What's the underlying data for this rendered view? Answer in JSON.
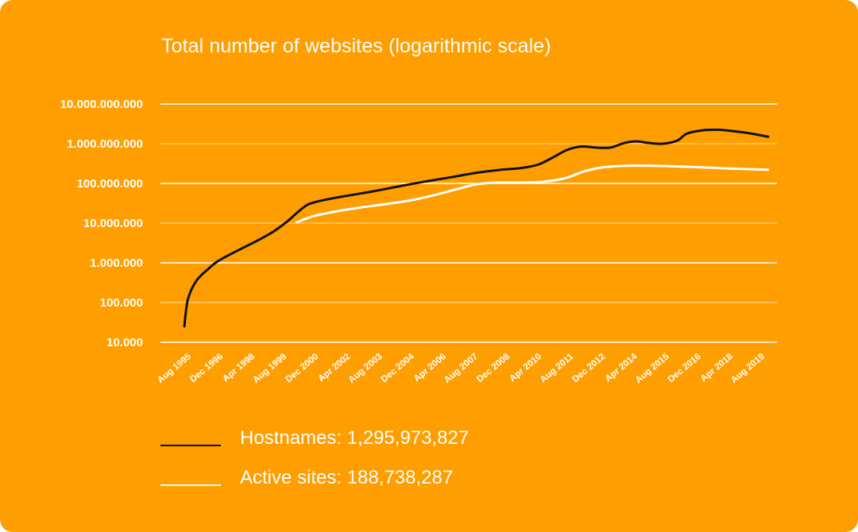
{
  "chart_data": {
    "type": "line",
    "title": "Total number of websites (logarithmic scale)",
    "xlabel": "",
    "ylabel": "",
    "yscale": "log",
    "ylim": [
      10000,
      10000000000
    ],
    "yticks": [
      {
        "value": 10000000000,
        "label": "10.000.000.000"
      },
      {
        "value": 1000000000,
        "label": "1.000.000.000"
      },
      {
        "value": 100000000,
        "label": "100.000.000"
      },
      {
        "value": 10000000,
        "label": "10.000.000"
      },
      {
        "value": 1000000,
        "label": "1.000.000"
      },
      {
        "value": 100000,
        "label": "100.000"
      },
      {
        "value": 10000,
        "label": "10.000"
      }
    ],
    "categories": [
      "Aug 1995",
      "Dec 1996",
      "Apr 1998",
      "Aug 1999",
      "Dec 2000",
      "Apr 2002",
      "Aug 2003",
      "Dec 2004",
      "Apr 2006",
      "Aug 2007",
      "Dec 2008",
      "Apr 2010",
      "Aug 2011",
      "Dec 2012",
      "Apr 2014",
      "Aug 2015",
      "Dec 2016",
      "Apr 2018",
      "Aug 2019"
    ],
    "x_range": [
      1995.6,
      2020.1
    ],
    "series": [
      {
        "name": "Hostnames",
        "color": "#111111",
        "points": [
          [
            1995.6,
            25000
          ],
          [
            1995.75,
            120000
          ],
          [
            1996.1,
            350000
          ],
          [
            1996.6,
            700000
          ],
          [
            1997.0,
            1100000
          ],
          [
            1997.8,
            2000000
          ],
          [
            1998.6,
            3500000
          ],
          [
            1999.3,
            6000000
          ],
          [
            1999.9,
            11000000
          ],
          [
            2000.3,
            18000000
          ],
          [
            2000.8,
            30000000
          ],
          [
            2001.6,
            40000000
          ],
          [
            2002.5,
            50000000
          ],
          [
            2003.6,
            65000000
          ],
          [
            2004.6,
            85000000
          ],
          [
            2005.6,
            110000000
          ],
          [
            2006.8,
            145000000
          ],
          [
            2007.8,
            185000000
          ],
          [
            2008.8,
            220000000
          ],
          [
            2009.7,
            245000000
          ],
          [
            2010.4,
            300000000
          ],
          [
            2011.0,
            450000000
          ],
          [
            2011.6,
            700000000
          ],
          [
            2012.2,
            850000000
          ],
          [
            2012.8,
            800000000
          ],
          [
            2013.4,
            800000000
          ],
          [
            2014.0,
            1050000000
          ],
          [
            2014.5,
            1150000000
          ],
          [
            2015.0,
            1050000000
          ],
          [
            2015.6,
            1000000000
          ],
          [
            2016.2,
            1200000000
          ],
          [
            2016.6,
            1800000000
          ],
          [
            2017.2,
            2150000000
          ],
          [
            2017.9,
            2250000000
          ],
          [
            2018.6,
            2050000000
          ],
          [
            2019.3,
            1800000000
          ],
          [
            2020.0,
            1500000000
          ]
        ]
      },
      {
        "name": "Active sites",
        "color": "#ffffff",
        "points": [
          [
            2000.3,
            10500000
          ],
          [
            2001.0,
            15000000
          ],
          [
            2002.0,
            20000000
          ],
          [
            2003.0,
            25000000
          ],
          [
            2004.0,
            30000000
          ],
          [
            2005.0,
            37000000
          ],
          [
            2006.0,
            50000000
          ],
          [
            2007.0,
            72000000
          ],
          [
            2007.8,
            95000000
          ],
          [
            2008.6,
            105000000
          ],
          [
            2009.6,
            105000000
          ],
          [
            2010.6,
            110000000
          ],
          [
            2011.5,
            135000000
          ],
          [
            2012.3,
            200000000
          ],
          [
            2013.0,
            250000000
          ],
          [
            2013.8,
            275000000
          ],
          [
            2014.6,
            280000000
          ],
          [
            2015.6,
            275000000
          ],
          [
            2016.8,
            260000000
          ],
          [
            2018.2,
            240000000
          ],
          [
            2020.0,
            220000000
          ]
        ]
      }
    ],
    "legend_position": "bottom-left",
    "grid": true
  },
  "legend": {
    "hostnames_label": "Hostnames: 1,295,973,827",
    "active_label": "Active sites: 188,738,287",
    "hostnames_color": "#111111",
    "active_color": "#ffffff"
  },
  "colors": {
    "background": "#ff9e00",
    "text": "#ffffff",
    "grid_major": "#ffffff",
    "grid_minor": "#ffd089"
  }
}
